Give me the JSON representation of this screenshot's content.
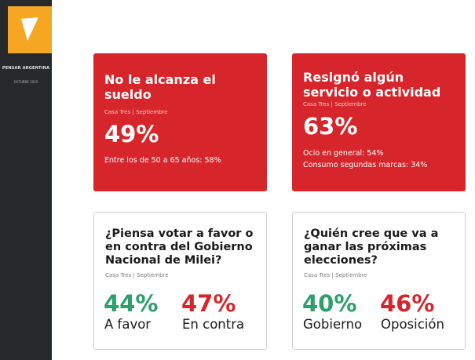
{
  "brand": {
    "name": "PENSAR ARGENTINA",
    "date": "OCTUBRE 2025",
    "accent": "#f5a623",
    "sidebar_color": "#262a2c"
  },
  "colors": {
    "red": "#d7262b",
    "green": "#2e9e6a"
  },
  "cards": [
    {
      "title": "No le alcanza el sueldo",
      "source": "Casa Tres | Septiembre",
      "value": "49%",
      "details": [
        "Entre los de 50 a 65 años: 58%"
      ]
    },
    {
      "title": "Resignó algún servicio o actividad",
      "source": "Casa Tres | Septiembre",
      "value": "63%",
      "details": [
        "Ocio en general: 54%",
        "Consumo segundas marcas: 34%"
      ]
    },
    {
      "title": "¿Piensa votar a favor o en contra del Gobierno Nacional de Milei?",
      "source": "Casa Tres | Septiembre",
      "results": [
        {
          "value": "44%",
          "label": "A favor"
        },
        {
          "value": "47%",
          "label": "En contra"
        }
      ]
    },
    {
      "title": "¿Quién cree que va a ganar las próximas elecciones?",
      "source": "Casa Tres | Septiembre",
      "results": [
        {
          "value": "40%",
          "label": "Gobierno"
        },
        {
          "value": "46%",
          "label": "Oposición"
        }
      ]
    }
  ]
}
